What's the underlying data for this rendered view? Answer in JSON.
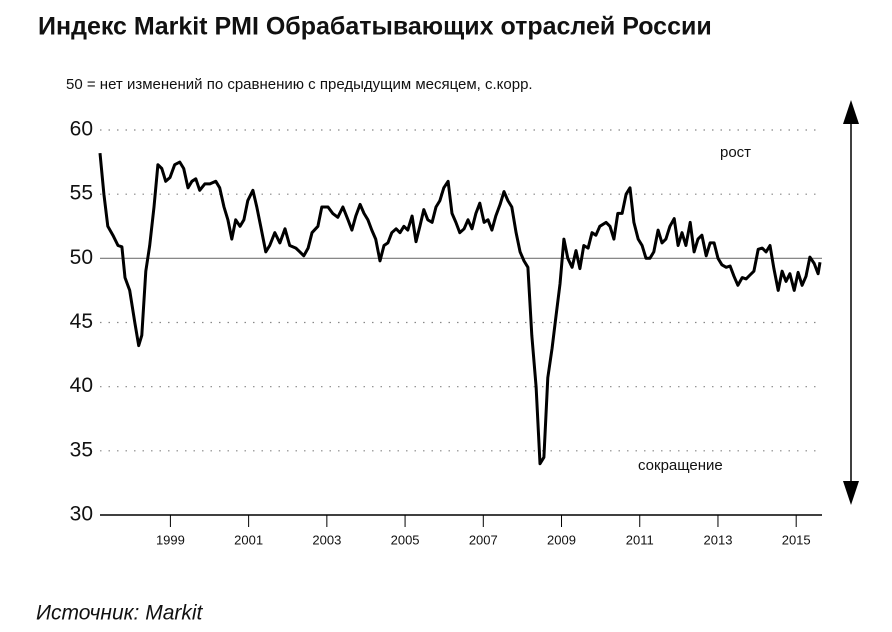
{
  "chart_data": {
    "type": "line",
    "title": "Индекс Markit PMI Обрабатывающих отраслей России",
    "subtitle": "50 = нет изменений по сравнению с предыдущим месяцем, с.корр.",
    "annotations": [
      "рост",
      "сокращение"
    ],
    "source": "Источник: Markit",
    "color": "#000000",
    "reference_line": 50,
    "grid": true,
    "xlim": [
      1997.7,
      2016.16
    ],
    "ylim": [
      30,
      60
    ],
    "yticks": [
      30,
      35,
      40,
      45,
      50,
      55,
      60
    ],
    "xticks": [
      {
        "value": 1999.5,
        "label": "1999"
      },
      {
        "value": 2001.5,
        "label": "2001"
      },
      {
        "value": 2003.5,
        "label": "2003"
      },
      {
        "value": 2005.5,
        "label": "2005"
      },
      {
        "value": 2007.5,
        "label": "2007"
      },
      {
        "value": 2009.5,
        "label": "2009"
      },
      {
        "value": 2011.5,
        "label": "2011"
      },
      {
        "value": 2013.5,
        "label": "2013"
      },
      {
        "value": 2015.5,
        "label": "2015"
      }
    ],
    "x": [
      1997.7,
      1997.8,
      1997.9,
      1998.03,
      1998.16,
      1998.26,
      1998.34,
      1998.46,
      1998.59,
      1998.69,
      1998.77,
      1998.87,
      1998.97,
      1999.08,
      1999.18,
      1999.28,
      1999.38,
      1999.49,
      1999.61,
      1999.74,
      1999.84,
      1999.95,
      2000.05,
      2000.15,
      2000.25,
      2000.38,
      2000.51,
      2000.66,
      2000.76,
      2000.87,
      2000.97,
      2001.07,
      2001.17,
      2001.28,
      2001.38,
      2001.48,
      2001.61,
      2001.71,
      2001.81,
      2001.94,
      2002.04,
      2002.17,
      2002.3,
      2002.43,
      2002.55,
      2002.71,
      2002.81,
      2002.91,
      2003.02,
      2003.12,
      2003.27,
      2003.37,
      2003.53,
      2003.65,
      2003.78,
      2003.91,
      2004.04,
      2004.14,
      2004.24,
      2004.35,
      2004.45,
      2004.55,
      2004.65,
      2004.75,
      2004.86,
      2004.96,
      2005.06,
      2005.16,
      2005.27,
      2005.37,
      2005.47,
      2005.57,
      2005.68,
      2005.78,
      2005.88,
      2005.98,
      2006.08,
      2006.19,
      2006.29,
      2006.39,
      2006.49,
      2006.6,
      2006.7,
      2006.8,
      2006.9,
      2007.01,
      2007.11,
      2007.21,
      2007.31,
      2007.41,
      2007.52,
      2007.62,
      2007.72,
      2007.82,
      2007.93,
      2008.03,
      2008.13,
      2008.23,
      2008.34,
      2008.44,
      2008.54,
      2008.64,
      2008.74,
      2008.85,
      2008.95,
      2009.05,
      2009.15,
      2009.26,
      2009.36,
      2009.46,
      2009.56,
      2009.66,
      2009.77,
      2009.87,
      2009.97,
      2010.07,
      2010.18,
      2010.28,
      2010.38,
      2010.48,
      2010.64,
      2010.74,
      2010.84,
      2010.94,
      2011.05,
      2011.15,
      2011.25,
      2011.35,
      2011.46,
      2011.56,
      2011.66,
      2011.76,
      2011.86,
      2011.97,
      2012.07,
      2012.17,
      2012.27,
      2012.38,
      2012.48,
      2012.58,
      2012.68,
      2012.79,
      2012.89,
      2012.99,
      2013.09,
      2013.2,
      2013.3,
      2013.4,
      2013.5,
      2013.6,
      2013.71,
      2013.81,
      2013.91,
      2014.01,
      2014.12,
      2014.22,
      2014.32,
      2014.42,
      2014.53,
      2014.63,
      2014.73,
      2014.83,
      2014.93,
      2015.04,
      2015.14,
      2015.24,
      2015.34,
      2015.45,
      2015.55,
      2015.65,
      2015.75,
      2015.85,
      2015.96,
      2016.06,
      2016.11
    ],
    "values": [
      58.2,
      55,
      52.5,
      51.8,
      51,
      50.9,
      48.5,
      47.5,
      45,
      43.2,
      44,
      49,
      51,
      54,
      57.3,
      57,
      56,
      56.3,
      57.3,
      57.5,
      57,
      55.5,
      56,
      56.2,
      55.3,
      55.8,
      55.8,
      56,
      55.5,
      54,
      53,
      51.5,
      53,
      52.5,
      53,
      54.5,
      55.3,
      54,
      52.5,
      50.5,
      51,
      52,
      51.2,
      52.3,
      51,
      50.8,
      50.5,
      50.2,
      50.8,
      52,
      52.5,
      54,
      54,
      53.5,
      53.2,
      54,
      53,
      52.2,
      53.3,
      54.2,
      53.5,
      53,
      52.2,
      51.5,
      49.8,
      51,
      51.2,
      52,
      52.3,
      52,
      52.5,
      52.2,
      53.3,
      51.3,
      52.5,
      53.8,
      53,
      52.8,
      54,
      54.5,
      55.5,
      56,
      53.5,
      52.8,
      52,
      52.3,
      53,
      52.3,
      53.5,
      54.3,
      52.8,
      53,
      52.2,
      53.3,
      54.2,
      55.2,
      54.5,
      54,
      52,
      50.5,
      49.8,
      49.3,
      44,
      40,
      34,
      34.5,
      40.7,
      43,
      45.5,
      48,
      51.5,
      50,
      49.3,
      50.6,
      49.2,
      51,
      50.8,
      52,
      51.8,
      52.5,
      52.8,
      52.5,
      51.5,
      53.5,
      53.5,
      55,
      55.5,
      52.8,
      51.5,
      51,
      50,
      50,
      50.5,
      52.2,
      51.2,
      51.5,
      52.5,
      53.1,
      51,
      52,
      51,
      52.8,
      50.5,
      51.5,
      51.8,
      50.2,
      51.2,
      51.2,
      50,
      49.5,
      49.3,
      49.4,
      48.6,
      47.9,
      48.5,
      48.4,
      48.7,
      49,
      50.7,
      50.8,
      50.5,
      51,
      49.2,
      47.5,
      49,
      48.2,
      48.8,
      47.5,
      48.9,
      47.9,
      48.6,
      50.1,
      49.6,
      48.8,
      49.7
    ]
  }
}
